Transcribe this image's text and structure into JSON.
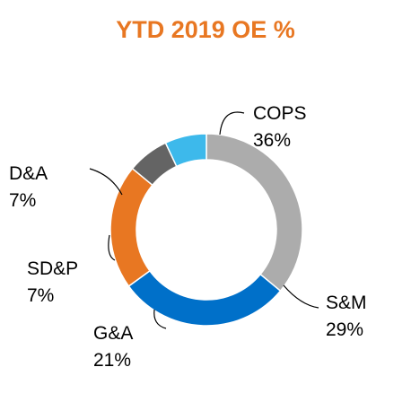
{
  "chart_data": {
    "type": "pie",
    "style": "donut",
    "title": "YTD 2019 OE %",
    "title_color": "#E87722",
    "slices": [
      {
        "label": "COPS",
        "value": 36,
        "value_text": "36%",
        "color": "#ACACAC"
      },
      {
        "label": "S&M",
        "value": 29,
        "value_text": "29%",
        "color": "#0070C9"
      },
      {
        "label": "G&A",
        "value": 21,
        "value_text": "21%",
        "color": "#E87722"
      },
      {
        "label": "SD&P",
        "value": 7,
        "value_text": "7%",
        "color": "#646464"
      },
      {
        "label": "D&A",
        "value": 7,
        "value_text": "7%",
        "color": "#3DB9EB"
      }
    ],
    "legend": "none"
  }
}
